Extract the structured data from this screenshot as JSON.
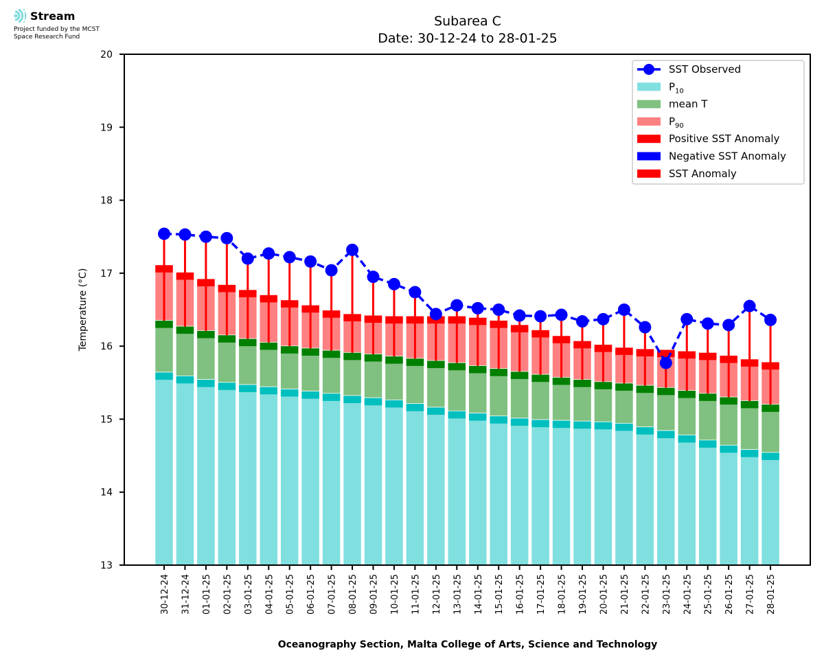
{
  "logo": {
    "name": "Stream",
    "line1": "Project funded by the MCST",
    "line2": "Space Research Fund"
  },
  "chart_data": {
    "type": "bar",
    "title": "Subarea C",
    "subtitle": "Date: 30-12-24 to 28-01-25",
    "xlabel": "Oceanography Section, Malta College of Arts, Science and Technology",
    "ylabel": "Temperature (°C)",
    "ylim": [
      13,
      20
    ],
    "yticks": [
      "13",
      "14",
      "15",
      "16",
      "17",
      "18",
      "19",
      "20"
    ],
    "grid": false,
    "legend_position": "top-right",
    "categories": [
      "30-12-24",
      "31-12-24",
      "01-01-25",
      "02-01-25",
      "03-01-25",
      "04-01-25",
      "05-01-25",
      "06-01-25",
      "07-01-25",
      "08-01-25",
      "09-01-25",
      "10-01-25",
      "11-01-25",
      "12-01-25",
      "13-01-25",
      "14-01-25",
      "15-01-25",
      "16-01-25",
      "17-01-25",
      "18-01-25",
      "19-01-25",
      "20-01-25",
      "21-01-25",
      "22-01-25",
      "23-01-25",
      "24-01-25",
      "25-01-25",
      "26-01-25",
      "27-01-25",
      "28-01-25"
    ],
    "series": [
      {
        "name": "SST Observed",
        "kind": "line",
        "color": "#0000ff",
        "values": [
          17.54,
          17.53,
          17.5,
          17.48,
          17.2,
          17.27,
          17.22,
          17.16,
          17.04,
          17.32,
          16.95,
          16.85,
          16.74,
          16.44,
          16.56,
          16.52,
          16.5,
          16.42,
          16.41,
          16.43,
          16.34,
          16.37,
          16.5,
          16.26,
          15.77,
          16.37,
          16.31,
          16.29,
          16.55,
          16.36
        ]
      },
      {
        "name": "P10",
        "kind": "bar",
        "color": "#80dfdf",
        "band_color": "#00bfbf",
        "values": [
          15.64,
          15.59,
          15.54,
          15.5,
          15.47,
          15.44,
          15.41,
          15.38,
          15.35,
          15.32,
          15.29,
          15.26,
          15.21,
          15.16,
          15.11,
          15.08,
          15.04,
          15.01,
          14.99,
          14.98,
          14.97,
          14.96,
          14.94,
          14.89,
          14.84,
          14.78,
          14.71,
          14.64,
          14.58,
          14.54
        ]
      },
      {
        "name": "mean T",
        "kind": "bar",
        "color": "#80c080",
        "band_color": "#008000",
        "values": [
          16.35,
          16.27,
          16.21,
          16.15,
          16.1,
          16.05,
          16.0,
          15.97,
          15.94,
          15.91,
          15.89,
          15.86,
          15.83,
          15.8,
          15.77,
          15.73,
          15.69,
          15.65,
          15.61,
          15.57,
          15.54,
          15.51,
          15.49,
          15.46,
          15.43,
          15.39,
          15.35,
          15.3,
          15.25,
          15.2
        ]
      },
      {
        "name": "P90",
        "kind": "bar",
        "color": "#ff8080",
        "band_color": "#ff0000",
        "values": [
          17.11,
          17.01,
          16.92,
          16.84,
          16.77,
          16.7,
          16.63,
          16.56,
          16.49,
          16.44,
          16.42,
          16.41,
          16.41,
          16.41,
          16.41,
          16.39,
          16.35,
          16.29,
          16.22,
          16.14,
          16.07,
          16.02,
          15.98,
          15.96,
          15.95,
          15.93,
          15.91,
          15.87,
          15.82,
          15.78
        ]
      }
    ],
    "legend": [
      {
        "label": "SST Observed",
        "type": "line-marker",
        "color": "#0000ff"
      },
      {
        "label": "P",
        "sub": "10",
        "type": "patch",
        "color": "#80dfdf"
      },
      {
        "label": "mean T",
        "type": "patch",
        "color": "#80c080"
      },
      {
        "label": "P",
        "sub": "90",
        "type": "patch",
        "color": "#ff8080"
      },
      {
        "label": "Positive SST Anomaly",
        "type": "patch",
        "color": "#ff0000"
      },
      {
        "label": "Negative SST Anomaly",
        "type": "patch",
        "color": "#0000ff"
      },
      {
        "label": "SST Anomaly",
        "type": "patch",
        "color": "#ff0000"
      }
    ]
  }
}
